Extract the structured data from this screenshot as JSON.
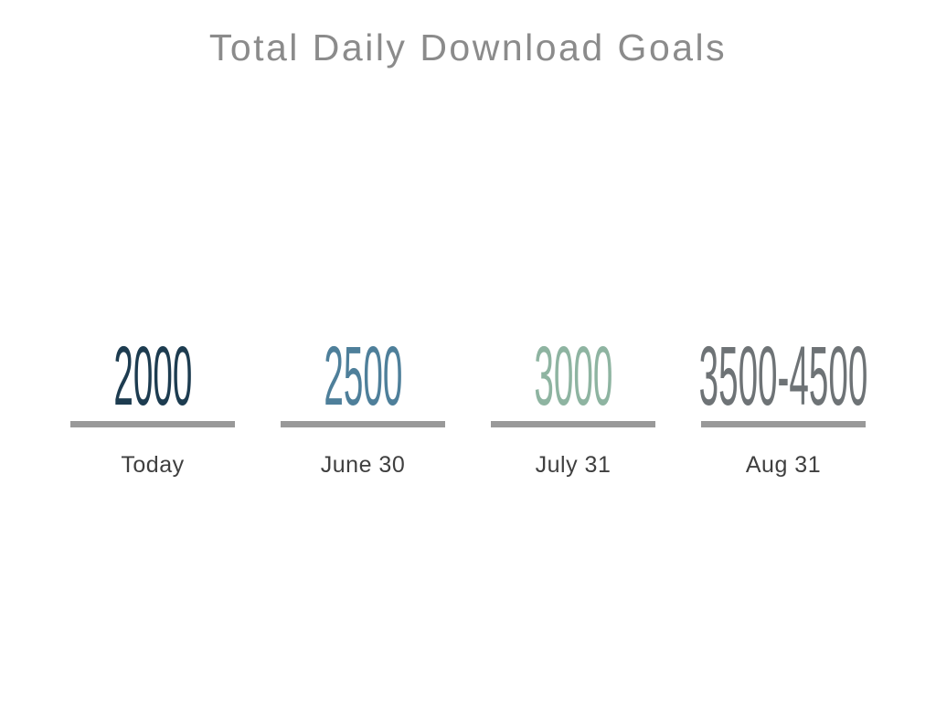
{
  "title": "Total Daily Download Goals",
  "goals": [
    {
      "value": "2000",
      "label": "Today",
      "color": "#1d3c50"
    },
    {
      "value": "2500",
      "label": "June 30",
      "color": "#4e7f9a"
    },
    {
      "value": "3000",
      "label": "July 31",
      "color": "#8eb4a1"
    },
    {
      "value": "3500-4500",
      "label": "Aug 31",
      "color": "#6e7376"
    }
  ],
  "style": {
    "title_color": "#8b8b8b",
    "label_color": "#3f3f3f",
    "divider_color": "#999999",
    "background": "#ffffff"
  },
  "chart_data": {
    "type": "table",
    "title": "Total Daily Download Goals",
    "categories": [
      "Today",
      "June 30",
      "July 31",
      "Aug 31"
    ],
    "values": [
      "2000",
      "2500",
      "3000",
      "3500-4500"
    ],
    "value_colors": [
      "#1d3c50",
      "#4e7f9a",
      "#8eb4a1",
      "#6e7376"
    ],
    "grid": false,
    "legend_position": "none"
  }
}
